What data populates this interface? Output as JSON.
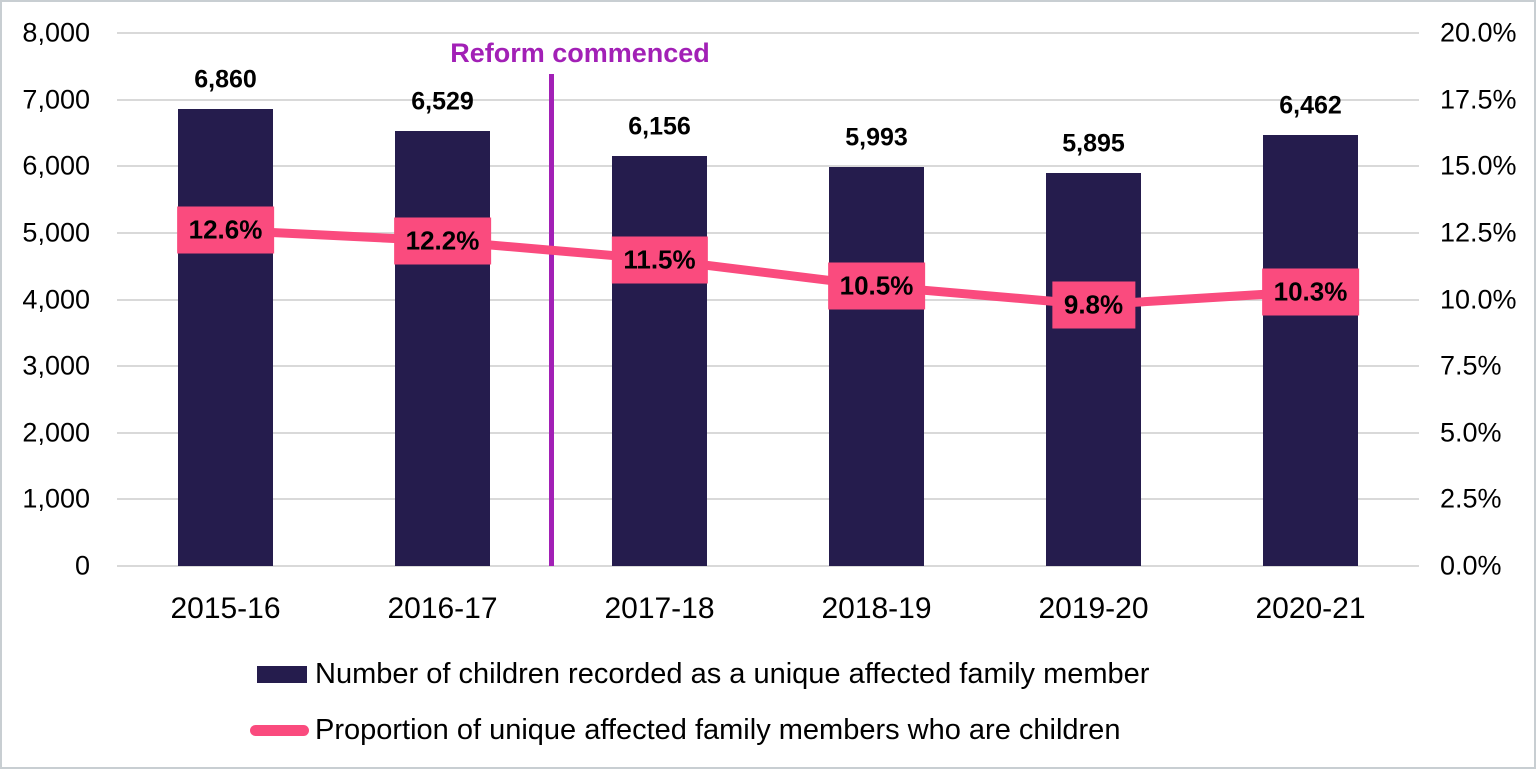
{
  "chart_data": {
    "type": "bar",
    "categories": [
      "2015-16",
      "2016-17",
      "2017-18",
      "2018-19",
      "2019-20",
      "2020-21"
    ],
    "series": [
      {
        "name": "Number of children recorded as a unique affected family member",
        "type": "bar",
        "axis": "left",
        "color": "#251c4d",
        "values": [
          6860,
          6529,
          6156,
          5993,
          5895,
          6462
        ],
        "labels": [
          "6,860",
          "6,529",
          "6,156",
          "5,993",
          "5,895",
          "6,462"
        ]
      },
      {
        "name": "Proportion of unique affected family members who are children",
        "type": "line",
        "axis": "right",
        "color": "#fa4b7e",
        "values": [
          12.6,
          12.2,
          11.5,
          10.5,
          9.8,
          10.3
        ],
        "labels": [
          "12.6%",
          "12.2%",
          "11.5%",
          "10.5%",
          "9.8%",
          "10.3%"
        ]
      }
    ],
    "left_axis": {
      "min": 0,
      "max": 8000,
      "step": 1000,
      "ticks": [
        "8,000",
        "7,000",
        "6,000",
        "5,000",
        "4,000",
        "3,000",
        "2,000",
        "1,000",
        "0"
      ]
    },
    "right_axis": {
      "min": 0,
      "max": 20,
      "step": 2.5,
      "ticks": [
        "20.0%",
        "17.5%",
        "15.0%",
        "12.5%",
        "10.0%",
        "7.5%",
        "5.0%",
        "2.5%",
        "0.0%"
      ]
    },
    "annotation": {
      "text": "Reform commenced",
      "color": "#a220b6",
      "position_between": [
        "2016-17",
        "2017-18"
      ]
    },
    "grid": true,
    "legend_position": "bottom",
    "colors": {
      "bar": "#251c4d",
      "line": "#fa4b7e",
      "annotation": "#a220b6",
      "gridline": "#d9d9d9",
      "text": "#000000"
    }
  }
}
